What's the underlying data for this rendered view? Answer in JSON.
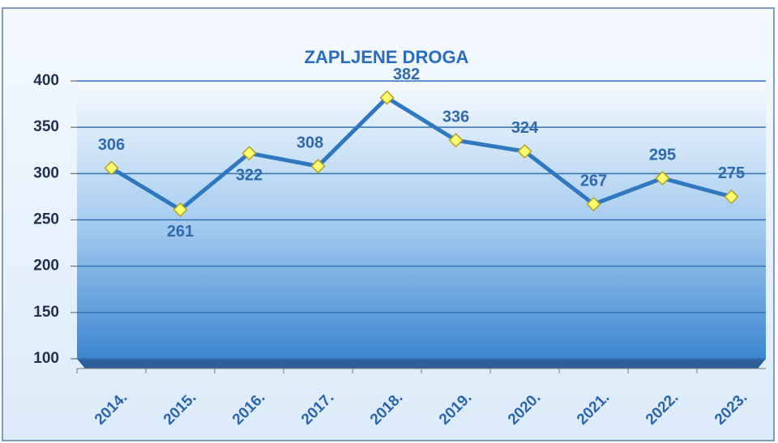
{
  "chart_data": {
    "type": "line",
    "title": "ZAPLJENE DROGA",
    "categories": [
      "2014.",
      "2015.",
      "2016.",
      "2017.",
      "2018.",
      "2019.",
      "2020.",
      "2021.",
      "2022.",
      "2023."
    ],
    "values": [
      306,
      261,
      322,
      308,
      382,
      336,
      324,
      267,
      295,
      275
    ],
    "color": "#2f78c0",
    "ylim": [
      100,
      400
    ],
    "yticks": [
      100,
      150,
      200,
      250,
      300,
      350,
      400
    ],
    "grid": true
  }
}
